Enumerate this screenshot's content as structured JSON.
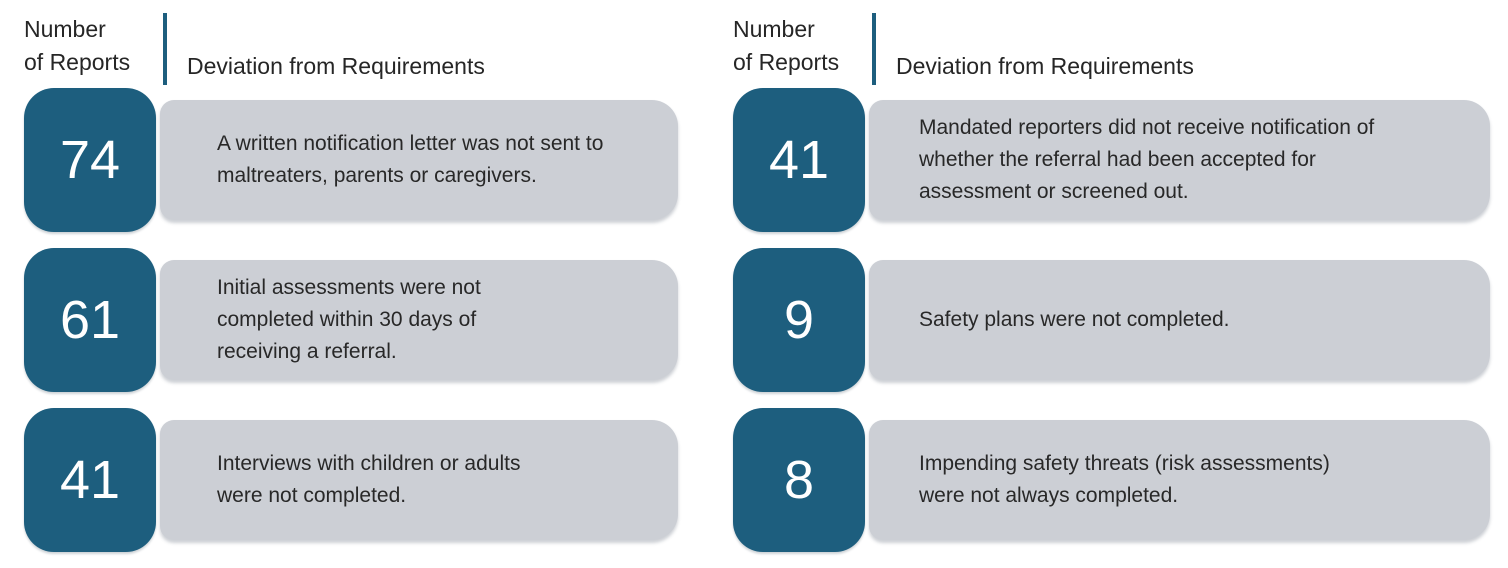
{
  "colors": {
    "teal_badge": "#1D5E7E",
    "gray_box": "#CCCFD5",
    "body_text": "#282828",
    "number_text": "#FFFFFF",
    "background": "#FFFFFF"
  },
  "header": {
    "number_line1": "Number",
    "number_line2": "of Reports",
    "deviation_label": "Deviation from Requirements"
  },
  "tables": [
    {
      "rows": [
        {
          "count": "74",
          "text": "A written notification letter was not sent to maltreaters, parents or caregivers."
        },
        {
          "count": "61",
          "text": "Initial assessments were not completed within 30 days of receiving a referral."
        },
        {
          "count": "41",
          "text": "Interviews with children or adults were not completed."
        }
      ]
    },
    {
      "rows": [
        {
          "count": "41",
          "text": "Mandated reporters did not receive notification of whether the referral had been accepted for assessment or screened out."
        },
        {
          "count": "9",
          "text": "Safety plans were not completed."
        },
        {
          "count": "8",
          "text": "Impending safety threats (risk assessments) were not always completed."
        }
      ]
    }
  ],
  "chart_data": {
    "type": "table",
    "title": "",
    "columns": [
      "Number of Reports",
      "Deviation from Requirements"
    ],
    "rows": [
      [
        74,
        "A written notification letter was not sent to maltreaters, parents or caregivers."
      ],
      [
        61,
        "Initial assessments were not completed within 30 days of receiving a referral."
      ],
      [
        41,
        "Interviews with children or adults were not completed."
      ],
      [
        41,
        "Mandated reporters did not receive notification of whether the referral had been accepted for assessment or screened out."
      ],
      [
        9,
        "Safety plans were not completed."
      ],
      [
        8,
        "Impending safety threats (risk assessments) were not always completed."
      ]
    ],
    "layout": "two side-by-side panels, rows 1-3 left panel, rows 4-6 right panel"
  }
}
